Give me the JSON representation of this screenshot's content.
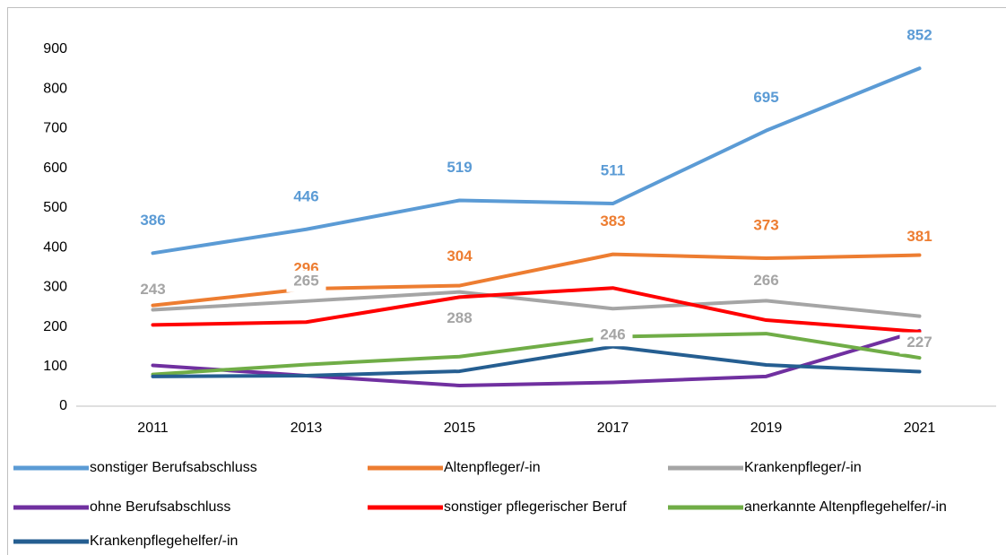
{
  "chart_data": {
    "type": "line",
    "categories": [
      "2011",
      "2013",
      "2015",
      "2017",
      "2019",
      "2021"
    ],
    "ylim": [
      0,
      900
    ],
    "yticks": [
      0,
      100,
      200,
      300,
      400,
      500,
      600,
      700,
      800,
      900
    ],
    "grid": false,
    "legend": "bottom",
    "series": [
      {
        "name": "sonstiger Berufsabschluss",
        "color": "#5b9bd5",
        "values": [
          386,
          446,
          519,
          511,
          695,
          852
        ],
        "data_labels": true
      },
      {
        "name": "Altenpfleger/-in",
        "color": "#ed7d31",
        "values": [
          254,
          296,
          304,
          383,
          373,
          381
        ],
        "data_labels": true
      },
      {
        "name": "Krankenpfleger/-in",
        "color": "#a5a5a5",
        "values": [
          243,
          265,
          288,
          246,
          266,
          227
        ],
        "data_labels": true
      },
      {
        "name": "ohne Berufsabschluss",
        "color": "#7030a0",
        "values": [
          103,
          77,
          52,
          60,
          75,
          190
        ],
        "data_labels": false
      },
      {
        "name": "sonstiger pflegerischer Beruf",
        "color": "#ff0000",
        "values": [
          205,
          212,
          275,
          298,
          217,
          188
        ],
        "data_labels": false
      },
      {
        "name": "anerkannte Altenpflegehelfer/-in",
        "color": "#70ad47",
        "values": [
          80,
          105,
          125,
          175,
          183,
          122
        ],
        "data_labels": false
      },
      {
        "name": "Krankenpflegehelfer/-in",
        "color": "#255e91",
        "values": [
          75,
          77,
          88,
          150,
          104,
          87
        ],
        "data_labels": false
      }
    ]
  }
}
